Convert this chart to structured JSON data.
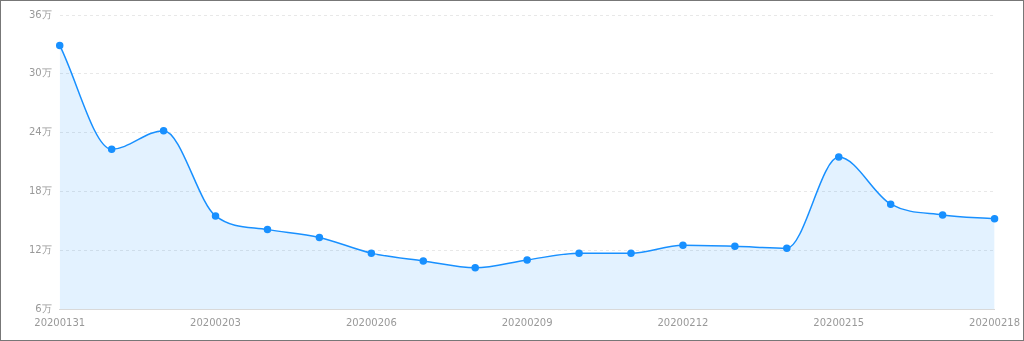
{
  "chart_data": {
    "type": "area",
    "categories": [
      "20200131",
      null,
      null,
      "20200203",
      null,
      null,
      "20200206",
      null,
      null,
      "20200209",
      null,
      null,
      "20200212",
      null,
      null,
      "20200215",
      null,
      null,
      "20200218"
    ],
    "series": [
      {
        "color": "#1890ff",
        "values": [
          32.9,
          22.3,
          24.2,
          15.5,
          14.1,
          13.3,
          11.7,
          10.9,
          10.2,
          11.0,
          11.7,
          11.7,
          12.5,
          12.4,
          12.2,
          21.5,
          16.7,
          15.6,
          15.2
        ]
      }
    ],
    "ylim": [
      6,
      36
    ],
    "yticks": [
      {
        "value": 6,
        "label": "6万"
      },
      {
        "value": 12,
        "label": "12万"
      },
      {
        "value": 18,
        "label": "18万"
      },
      {
        "value": 24,
        "label": "24万"
      },
      {
        "value": 30,
        "label": "30万"
      },
      {
        "value": 36,
        "label": "36万"
      }
    ],
    "grid": "y",
    "marker": "circle",
    "line_style": "solid",
    "legend": false
  }
}
